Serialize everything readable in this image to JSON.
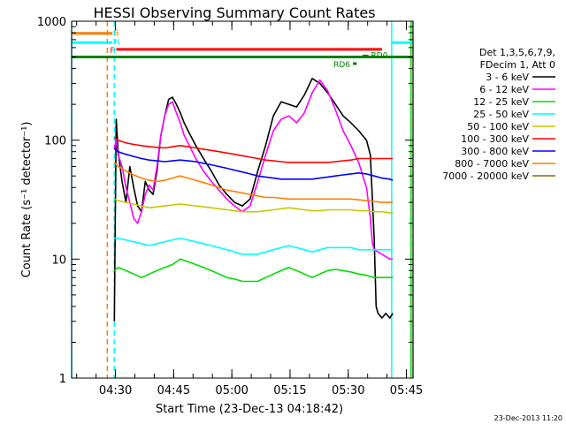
{
  "chart_data": {
    "type": "line",
    "title": "HESSI Observing Summary Count Rates",
    "xlabel": "Start Time (23-Dec-13 04:18:42)",
    "ylabel": "Count Rate (s⁻¹ detector⁻¹)",
    "yscale": "log",
    "ylim": [
      1,
      1000
    ],
    "xlim_min": [
      0,
      88
    ],
    "y_tick_labels": [
      "1",
      "10",
      "100",
      "1000"
    ],
    "x_ticks": [
      {
        "label": "04:30",
        "min": 11.3
      },
      {
        "label": "04:45",
        "min": 26.3
      },
      {
        "label": "05:00",
        "min": 41.3
      },
      {
        "label": "05:15",
        "min": 56.3
      },
      {
        "label": "05:30",
        "min": 71.3
      },
      {
        "label": "05:45",
        "min": 86.3
      }
    ],
    "legend_header": [
      "Det 1,3,5,6,7,9,",
      "FDecim 1, Att 0"
    ],
    "legend_placement": "right",
    "series": [
      {
        "name": "3 - 6 keV",
        "color": "#000000",
        "x": [
          11,
          11.5,
          12,
          13,
          14,
          15,
          16,
          17,
          18,
          19,
          20,
          21,
          22,
          23,
          24,
          25,
          26,
          27,
          28,
          29,
          30,
          32,
          34,
          36,
          38,
          40,
          42,
          44,
          46,
          48,
          50,
          52,
          54,
          56,
          58,
          60,
          62,
          64,
          66,
          68,
          70,
          72,
          74,
          76,
          77,
          78,
          78.5,
          79,
          80,
          81,
          82,
          82.8
        ],
        "y": [
          3,
          150,
          80,
          45,
          30,
          60,
          40,
          28,
          25,
          45,
          38,
          35,
          55,
          110,
          160,
          220,
          230,
          200,
          170,
          140,
          120,
          90,
          70,
          55,
          42,
          35,
          30,
          28,
          32,
          55,
          90,
          160,
          210,
          200,
          190,
          240,
          330,
          300,
          250,
          200,
          160,
          140,
          120,
          100,
          75,
          15,
          4,
          3.5,
          3.2,
          3.5,
          3.2,
          3.5
        ]
      },
      {
        "name": "6 - 12 keV",
        "color": "#ff00ff",
        "x": [
          11,
          11.5,
          12,
          13,
          14,
          15,
          16,
          17,
          18,
          19,
          20,
          21,
          22,
          23,
          24,
          25,
          26,
          27,
          28,
          29,
          30,
          32,
          34,
          36,
          38,
          40,
          42,
          44,
          46,
          48,
          50,
          52,
          54,
          56,
          58,
          60,
          62,
          64,
          66,
          68,
          70,
          72,
          74,
          76,
          77,
          77.5,
          78,
          80,
          82,
          82.8
        ],
        "y": [
          85,
          100,
          75,
          60,
          40,
          30,
          22,
          20,
          25,
          35,
          42,
          38,
          60,
          110,
          160,
          200,
          210,
          170,
          140,
          110,
          95,
          70,
          55,
          45,
          38,
          32,
          28,
          25,
          28,
          45,
          75,
          120,
          150,
          160,
          140,
          170,
          250,
          320,
          260,
          180,
          120,
          90,
          65,
          40,
          22,
          14,
          12,
          11,
          10,
          10
        ]
      },
      {
        "name": "12 - 25 keV",
        "color": "#00dd00",
        "x": [
          11,
          12,
          14,
          16,
          18,
          20,
          22,
          24,
          26,
          28,
          30,
          32,
          34,
          36,
          38,
          40,
          42,
          44,
          46,
          48,
          50,
          52,
          54,
          56,
          58,
          60,
          62,
          64,
          66,
          68,
          70,
          72,
          74,
          76,
          78,
          80,
          82,
          82.8
        ],
        "y": [
          8,
          8.5,
          8,
          7.5,
          7,
          7.5,
          8,
          8.5,
          9,
          10,
          9.5,
          9,
          8.5,
          8,
          7.5,
          7,
          6.8,
          6.5,
          6.5,
          6.5,
          7,
          7.5,
          8,
          8.5,
          8,
          7.5,
          7,
          7.5,
          8,
          8.2,
          8,
          7.8,
          7.5,
          7.3,
          7,
          7,
          7,
          7
        ]
      },
      {
        "name": "25 - 50 keV",
        "color": "#00ffff",
        "x": [
          11,
          12,
          14,
          16,
          18,
          20,
          22,
          24,
          26,
          28,
          30,
          32,
          34,
          36,
          38,
          40,
          42,
          44,
          46,
          48,
          50,
          52,
          54,
          56,
          58,
          60,
          62,
          64,
          66,
          68,
          70,
          72,
          74,
          76,
          78,
          80,
          82,
          82.8
        ],
        "y": [
          15,
          15,
          14.5,
          14,
          13.5,
          13,
          13.5,
          14,
          14.5,
          15,
          14.5,
          14,
          13.5,
          13,
          12.5,
          12,
          11.5,
          11,
          11,
          11,
          11.5,
          12,
          12.5,
          13,
          12.5,
          12,
          11.5,
          12,
          12.5,
          12.5,
          12.5,
          12.5,
          12,
          12,
          12,
          12,
          12,
          12
        ]
      },
      {
        "name": "50 - 100 keV",
        "color": "#c8c800",
        "x": [
          11,
          12,
          14,
          16,
          18,
          20,
          22,
          24,
          26,
          28,
          30,
          32,
          34,
          36,
          38,
          40,
          42,
          44,
          46,
          48,
          50,
          52,
          54,
          56,
          58,
          60,
          62,
          64,
          66,
          68,
          70,
          72,
          74,
          76,
          78,
          80,
          82,
          82.8
        ],
        "y": [
          32,
          31,
          30,
          29,
          28,
          27,
          27.5,
          28,
          28.5,
          29,
          28.5,
          28,
          27.5,
          27,
          26.5,
          26,
          25.5,
          25,
          25,
          25,
          25.5,
          26,
          26.5,
          27,
          26.5,
          26,
          25.5,
          25.5,
          26,
          26,
          26,
          26,
          25.5,
          25.5,
          25,
          25,
          24.5,
          24.5
        ]
      },
      {
        "name": "100 - 300 keV",
        "color": "#ff0000",
        "x": [
          11,
          12,
          14,
          16,
          18,
          20,
          22,
          24,
          26,
          28,
          30,
          32,
          34,
          36,
          38,
          40,
          42,
          44,
          46,
          48,
          50,
          52,
          54,
          56,
          58,
          60,
          62,
          64,
          66,
          68,
          70,
          72,
          74,
          76,
          78,
          80,
          82,
          82.8
        ],
        "y": [
          105,
          100,
          95,
          92,
          90,
          88,
          87,
          86,
          88,
          90,
          88,
          86,
          84,
          82,
          80,
          78,
          76,
          74,
          72,
          70,
          68,
          67,
          66,
          65,
          65,
          65,
          65,
          65,
          65,
          66,
          67,
          68,
          70,
          70,
          70,
          70,
          70,
          70
        ]
      },
      {
        "name": "300 - 800 keV",
        "color": "#0000ff",
        "x": [
          11,
          12,
          14,
          16,
          18,
          20,
          22,
          24,
          26,
          28,
          30,
          32,
          34,
          36,
          38,
          40,
          42,
          44,
          46,
          48,
          50,
          52,
          54,
          56,
          58,
          60,
          62,
          64,
          66,
          68,
          70,
          72,
          74,
          76,
          78,
          80,
          82,
          82.8
        ],
        "y": [
          85,
          80,
          76,
          73,
          70,
          68,
          67,
          66,
          67,
          68,
          67,
          66,
          64,
          62,
          60,
          58,
          56,
          54,
          52,
          50,
          49,
          48,
          47,
          47,
          47,
          47,
          47,
          48,
          49,
          50,
          51,
          52,
          53,
          52,
          50,
          48,
          47,
          46
        ]
      },
      {
        "name": "800 - 7000 keV",
        "color": "#ff7f00",
        "x": [
          11,
          12,
          14,
          16,
          18,
          20,
          22,
          24,
          26,
          28,
          30,
          32,
          34,
          36,
          38,
          40,
          42,
          44,
          46,
          48,
          50,
          52,
          54,
          56,
          58,
          60,
          62,
          64,
          66,
          68,
          70,
          72,
          74,
          76,
          78,
          80,
          82,
          82.8
        ],
        "y": [
          65,
          60,
          55,
          51,
          48,
          46,
          45,
          46,
          48,
          50,
          48,
          46,
          44,
          42,
          40,
          38,
          37,
          36,
          35,
          34,
          33,
          33,
          32.5,
          32,
          32,
          32,
          32,
          32,
          32,
          32,
          32,
          32,
          31.5,
          31,
          30.5,
          30,
          30,
          30
        ]
      },
      {
        "name": "7000 - 20000 keV",
        "color": "#8b6a00",
        "x": [],
        "y": []
      }
    ],
    "annotations": [
      {
        "label": "S",
        "color": "#ff7f00",
        "start_min": 0,
        "end_min": 10.5,
        "level": 790
      },
      {
        "label": "N",
        "color": "#00ffff",
        "start_min": 0,
        "end_min": 10.5,
        "level": 660
      },
      {
        "label": "F",
        "color": "#ff0000",
        "start_min": 11.5,
        "end_min": 80,
        "level": 580
      },
      {
        "label": "RD0",
        "color": "#008000",
        "start_min": 75,
        "end_min": 76.5,
        "level": 510
      },
      {
        "label": "RD6",
        "color": "#008000",
        "start_min": 72.5,
        "end_min": 73.5,
        "level": 440
      }
    ],
    "flags_right": [
      {
        "color": "#00ffff",
        "start_min": 82.5,
        "end_min": 91,
        "level": 660
      },
      {
        "color": "#ff7f00",
        "start_min": 89,
        "end_min": 91,
        "level": 790
      }
    ],
    "attenuator_bar": {
      "color": "#008000",
      "start_min": 0,
      "end_min": 92,
      "level": 500
    },
    "vlines": [
      {
        "color": "#ff7f00",
        "min": 9.2,
        "dashed": true
      },
      {
        "color": "#00ffff",
        "min": 11.0,
        "dashed": true
      },
      {
        "color": "#00ffff",
        "min": 82.5,
        "dashed": false
      },
      {
        "color": "#ff7f00",
        "min": 88.5,
        "dashed": false
      },
      {
        "color": "#00dd00",
        "min": 87.5,
        "dashed": false
      },
      {
        "color": "#00ffff",
        "min": 91.0,
        "dashed": true
      },
      {
        "color": "#00ffff",
        "min": 0.0,
        "dashed": false
      }
    ]
  },
  "footer": {
    "timestamp": "23-Dec-2013 11:20"
  }
}
